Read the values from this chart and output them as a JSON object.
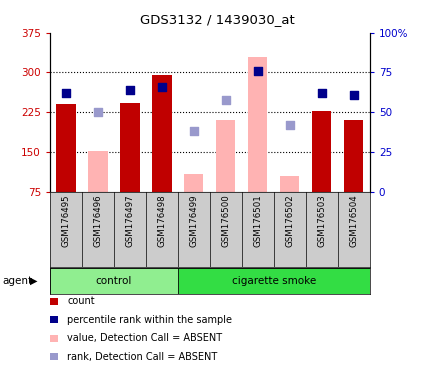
{
  "title": "GDS3132 / 1439030_at",
  "samples": [
    "GSM176495",
    "GSM176496",
    "GSM176497",
    "GSM176498",
    "GSM176499",
    "GSM176500",
    "GSM176501",
    "GSM176502",
    "GSM176503",
    "GSM176504"
  ],
  "ylim_left": [
    75,
    375
  ],
  "ylim_right": [
    0,
    100
  ],
  "yticks_left": [
    75,
    150,
    225,
    300,
    375
  ],
  "yticks_right": [
    0,
    25,
    50,
    75,
    100
  ],
  "ytick_labels_left": [
    "75",
    "150",
    "225",
    "300",
    "375"
  ],
  "ytick_labels_right": [
    "0",
    "25",
    "50",
    "75",
    "100%"
  ],
  "count_values": [
    240,
    null,
    242,
    295,
    null,
    null,
    null,
    null,
    228,
    210
  ],
  "count_absent": [
    null,
    153,
    null,
    null,
    108,
    210,
    330,
    105,
    null,
    null
  ],
  "pct_rank": [
    62,
    null,
    64,
    66,
    null,
    null,
    76,
    null,
    62,
    61
  ],
  "pct_rank_absent": [
    null,
    50,
    null,
    null,
    38,
    58,
    null,
    42,
    null,
    null
  ],
  "bar_color_present": "#c00000",
  "bar_color_absent": "#ffb3b3",
  "dot_color_present": "#00008b",
  "dot_color_absent": "#9999cc",
  "group_label": "agent",
  "control_indices": [
    0,
    1,
    2,
    3
  ],
  "smoke_indices": [
    4,
    5,
    6,
    7,
    8,
    9
  ],
  "tick_label_color_left": "#cc0000",
  "tick_label_color_right": "#0000cc",
  "ctrl_color": "#90ee90",
  "smoke_color": "#33dd44",
  "label_bg": "#cccccc",
  "grid_yticks": [
    150,
    225,
    300
  ]
}
